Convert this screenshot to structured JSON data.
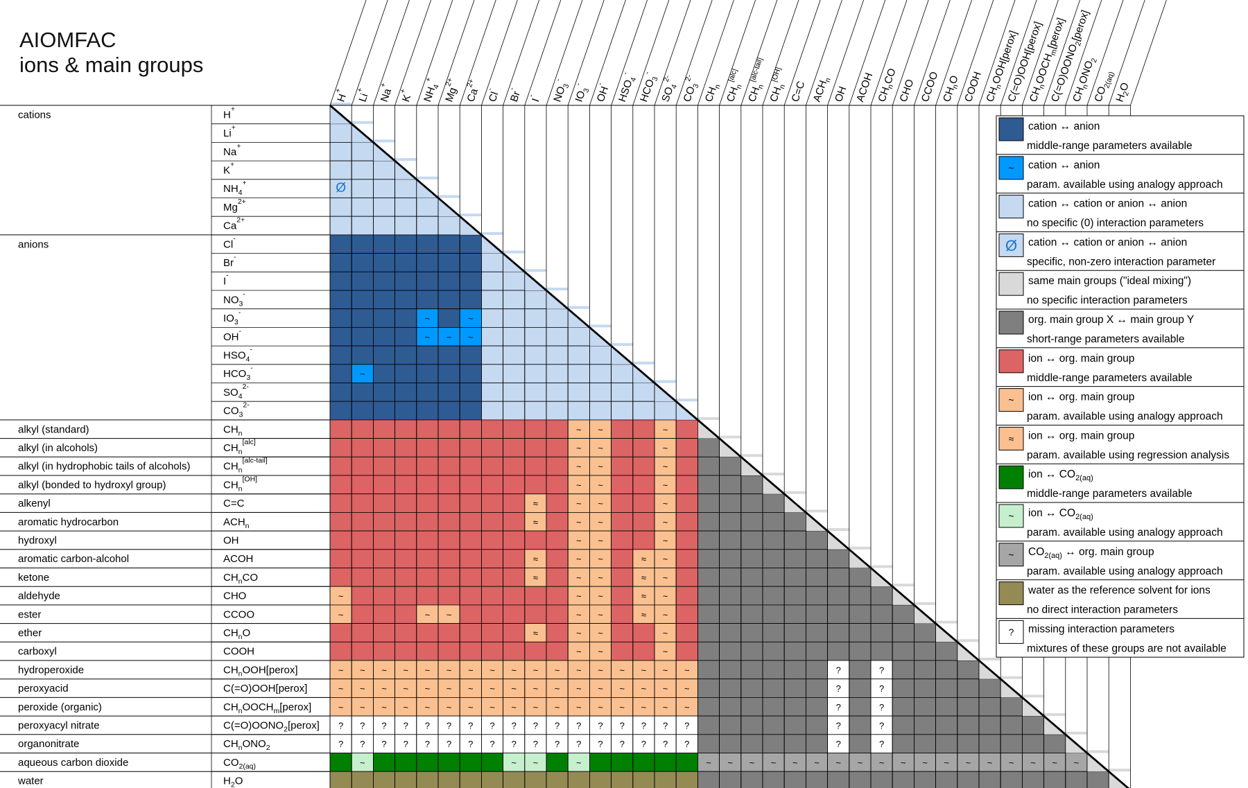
{
  "title": {
    "line1": "AIOMFAC",
    "line2": "ions & main groups"
  },
  "colors": {
    "dark_blue": "#2f5b93",
    "bright_blue": "#0099ff",
    "light_blue": "#c5d9f1",
    "light_gray": "#d9d9d9",
    "dark_gray": "#7f7f7f",
    "red": "#dc6464",
    "peach": "#fac090",
    "green": "#008000",
    "light_green": "#c6efce",
    "medium_gray": "#a6a6a6",
    "olive": "#948a54",
    "white": "#ffffff",
    "line": "#000000"
  },
  "categories": [
    {
      "label": "cations",
      "start": 0,
      "end": 6
    },
    {
      "label": "anions",
      "start": 7,
      "end": 16
    },
    {
      "label": "alkyl (standard)",
      "start": 17,
      "end": 17
    },
    {
      "label": "alkyl (in alcohols)",
      "start": 18,
      "end": 18
    },
    {
      "label": "alkyl (in hydrophobic tails of alcohols)",
      "start": 19,
      "end": 19
    },
    {
      "label": "alkyl (bonded to hydroxyl group)",
      "start": 20,
      "end": 20
    },
    {
      "label": "alkenyl",
      "start": 21,
      "end": 21
    },
    {
      "label": "aromatic hydrocarbon",
      "start": 22,
      "end": 22
    },
    {
      "label": "hydroxyl",
      "start": 23,
      "end": 23
    },
    {
      "label": "aromatic carbon-alcohol",
      "start": 24,
      "end": 24
    },
    {
      "label": "ketone",
      "start": 25,
      "end": 25
    },
    {
      "label": "aldehyde",
      "start": 26,
      "end": 26
    },
    {
      "label": "ester",
      "start": 27,
      "end": 27
    },
    {
      "label": "ether",
      "start": 28,
      "end": 28
    },
    {
      "label": "carboxyl",
      "start": 29,
      "end": 29
    },
    {
      "label": "hydroperoxide",
      "start": 30,
      "end": 30
    },
    {
      "label": "peroxyacid",
      "start": 31,
      "end": 31
    },
    {
      "label": "peroxide (organic)",
      "start": 32,
      "end": 32
    },
    {
      "label": "peroxyacyl nitrate",
      "start": 33,
      "end": 33
    },
    {
      "label": "organonitrate",
      "start": 34,
      "end": 34
    },
    {
      "label": "aqueous carbon dioxide",
      "start": 35,
      "end": 35
    },
    {
      "label": "water",
      "start": 36,
      "end": 36
    }
  ],
  "groups": [
    {
      "base": "H",
      "sup": "+"
    },
    {
      "base": "Li",
      "sup": "+"
    },
    {
      "base": "Na",
      "sup": "+"
    },
    {
      "base": "K",
      "sup": "+"
    },
    {
      "base": "NH",
      "sub": "4",
      "sup": "+"
    },
    {
      "base": "Mg",
      "sup": "2+"
    },
    {
      "base": "Ca",
      "sup": "2+"
    },
    {
      "base": "Cl",
      "sup": "-"
    },
    {
      "base": "Br",
      "sup": "-"
    },
    {
      "base": "I",
      "sup": "-"
    },
    {
      "base": "NO",
      "sub": "3",
      "sup": "-"
    },
    {
      "base": "IO",
      "sub": "3",
      "sup": "-"
    },
    {
      "base": "OH",
      "sup": "-"
    },
    {
      "base": "HSO",
      "sub": "4",
      "sup": "-"
    },
    {
      "base": "HCO",
      "sub": "3",
      "sup": "-"
    },
    {
      "base": "SO",
      "sub": "4",
      "sup": "2-"
    },
    {
      "base": "CO",
      "sub": "3",
      "sup": "2-"
    },
    {
      "base": "CH",
      "sub": "n"
    },
    {
      "base": "CH",
      "sub": "n",
      "sup": "[alc]"
    },
    {
      "base": "CH",
      "sub": "n",
      "sup": "[alc-tail]"
    },
    {
      "base": "CH",
      "sub": "n",
      "sup": "[OH]"
    },
    {
      "base": "C=C"
    },
    {
      "base": "ACH",
      "sub": "n"
    },
    {
      "base": "OH"
    },
    {
      "base": "ACOH"
    },
    {
      "base": "CH",
      "sub": "n",
      "tail": "CO"
    },
    {
      "base": "CHO"
    },
    {
      "base": "CCOO"
    },
    {
      "base": "CH",
      "sub": "n",
      "tail": "O"
    },
    {
      "base": "COOH"
    },
    {
      "base": "CH",
      "sub": "n",
      "tail": "OOH[perox]"
    },
    {
      "base": "C(=O)OOH[perox]"
    },
    {
      "base": "CH",
      "sub": "n",
      "tail": "OOCH",
      "sub2": "m",
      "tail2": "[perox]"
    },
    {
      "base": "C(=O)OONO",
      "sub": "2",
      "tail": "[perox]"
    },
    {
      "base": "CH",
      "sub": "n",
      "tail": "ONO",
      "sub2": "2"
    },
    {
      "base": "CO",
      "sub": "2(aq)"
    },
    {
      "base": "H",
      "sub": "2",
      "tail": "O"
    }
  ],
  "header_group_index_overrides": {
    "33": {
      "base": "C(=O)OONO",
      "sub": "2",
      "tail": "[perox]"
    }
  },
  "cell_overrides": {
    "4,0": "o_sym",
    "11,4": "bt",
    "11,6": "bt",
    "12,4": "bt",
    "12,5": "bt",
    "12,6": "bt",
    "14,1": "bt"
  },
  "tilde_cols_main": [
    11,
    12,
    15,
    17
  ],
  "approx_cells": [
    "21,9",
    "22,9",
    "24,9",
    "24,14",
    "25,9",
    "25,14",
    "26,14",
    "27,14",
    "28,9"
  ],
  "tilde_cells_extra": [
    "26,0",
    "27,0",
    "27,4",
    "27,5"
  ],
  "question_org_cols": [
    23,
    25
  ],
  "co2_tilde_cols": [
    1,
    8,
    9,
    11
  ],
  "symbols": {
    "tilde": "~",
    "approx": "≈",
    "question": "?",
    "null": "Ø"
  },
  "legend": [
    {
      "swatch": "dark_blue",
      "symbol": "",
      "line1": "cation ↔ anion",
      "line2": "middle-range parameters available"
    },
    {
      "swatch": "bright_blue",
      "symbol": "~",
      "line1": "cation ↔ anion",
      "line2": " param. available using analogy approach"
    },
    {
      "swatch": "light_blue",
      "symbol": "",
      "line1": "cation ↔ cation or anion ↔ anion",
      "line2": "no specific (0) interaction parameters"
    },
    {
      "swatch": "light_blue",
      "symbol": "Ø",
      "line1": "cation ↔ cation or anion ↔ anion",
      "line2": "specific, non-zero interaction parameter"
    },
    {
      "swatch": "light_gray",
      "symbol": "",
      "line1": "same main groups (\"ideal mixing\")",
      "line2": "no specific interaction parameters"
    },
    {
      "swatch": "dark_gray",
      "symbol": "",
      "line1": "org. main group X ↔ main group Y",
      "line2": "short-range parameters available"
    },
    {
      "swatch": "red",
      "symbol": "",
      "line1": "ion ↔ org. main group",
      "line2": "middle-range parameters available"
    },
    {
      "swatch": "peach",
      "symbol": "~",
      "line1": "ion ↔ org. main group",
      "line2": "param. available using analogy approach"
    },
    {
      "swatch": "peach",
      "symbol": "≈",
      "line1": "ion ↔ org. main group",
      "line2": "param. available using regression analysis"
    },
    {
      "swatch": "green",
      "symbol": "",
      "line1": "ion ↔ CO",
      "line1_sub": "2(aq)",
      "line2": "middle-range parameters available"
    },
    {
      "swatch": "light_green",
      "symbol": "~",
      "line1": "ion ↔ CO",
      "line1_sub": "2(aq)",
      "line2": " param. available using analogy approach"
    },
    {
      "swatch": "medium_gray",
      "symbol": "~",
      "line1": "CO",
      "line1_sub": "2(aq)",
      "line1_tail": " ↔ org. main group",
      "line2": " param. available using analogy approach"
    },
    {
      "swatch": "olive",
      "symbol": "",
      "line1": "water as the reference solvent for ions",
      "line2": "no direct interaction parameters"
    },
    {
      "swatch": "white",
      "symbol": "?",
      "line1": "missing interaction parameters",
      "line2": "mixtures of these groups are not available"
    }
  ]
}
